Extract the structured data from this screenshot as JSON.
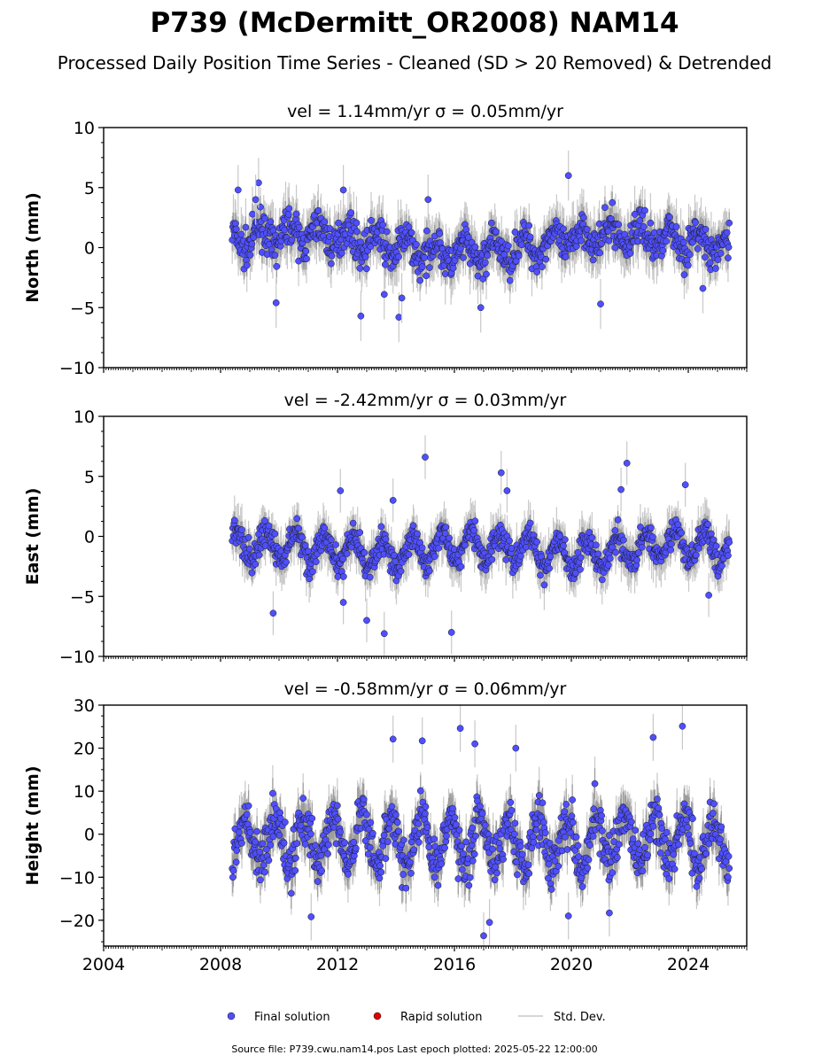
{
  "title": "P739 (McDermitt_OR2008) NAM14",
  "subtitle": "Processed Daily Position Time Series - Cleaned (SD > 20 Removed) & Detrended",
  "source_note": "Source file: P739.cwu.nam14.pos  Last epoch plotted: 2025-05-22 12:00:00",
  "legend": {
    "final": "Final solution",
    "rapid": "Rapid solution",
    "sd": "Std. Dev."
  },
  "colors": {
    "final": "#4f4fff",
    "rapid": "#e00000",
    "sd": "#c8c8c8",
    "band": "#777777"
  },
  "chart_data": [
    {
      "type": "scatter",
      "panel": "north",
      "title": "vel = 1.14mm/yr   σ = 0.05mm/yr",
      "ylabel": "North (mm)",
      "xlabel": "",
      "xlim": [
        2004,
        2026
      ],
      "ylim": [
        -10,
        10
      ],
      "yticks": [
        -10,
        -5,
        0,
        5,
        10
      ],
      "xticks": [
        2004,
        2008,
        2012,
        2016,
        2020,
        2024
      ],
      "data_range": [
        2008.4,
        2025.4
      ],
      "series_description": "Dense daily positions, mostly within about -3 to 4 mm with annual oscillation; outliers up to 6 and down to -6",
      "outliers": [
        [
          2008.6,
          4.8
        ],
        [
          2009.3,
          5.4
        ],
        [
          2009.2,
          4.0
        ],
        [
          2012.2,
          4.8
        ],
        [
          2015.1,
          4.0
        ],
        [
          2019.9,
          6.0
        ],
        [
          2012.8,
          -5.7
        ],
        [
          2014.1,
          -5.8
        ],
        [
          2016.9,
          -5.0
        ],
        [
          2009.9,
          -4.6
        ],
        [
          2021.0,
          -4.7
        ],
        [
          2024.5,
          -3.4
        ],
        [
          2013.6,
          -3.9
        ],
        [
          2014.2,
          -4.2
        ]
      ]
    },
    {
      "type": "scatter",
      "panel": "east",
      "title": "vel = -2.42mm/yr   σ = 0.03mm/yr",
      "ylabel": "East (mm)",
      "xlabel": "",
      "xlim": [
        2004,
        2026
      ],
      "ylim": [
        -10,
        10
      ],
      "yticks": [
        -10,
        -5,
        0,
        5,
        10
      ],
      "xticks": [
        2004,
        2008,
        2012,
        2016,
        2020,
        2024
      ],
      "data_range": [
        2008.4,
        2025.4
      ],
      "series_description": "Dense daily positions, mostly within about -4 to 2 mm with annual oscillation; outliers up to 6.6 and down to -8",
      "outliers": [
        [
          2015.0,
          6.6
        ],
        [
          2017.6,
          5.3
        ],
        [
          2021.9,
          6.1
        ],
        [
          2023.9,
          4.3
        ],
        [
          2017.8,
          3.8
        ],
        [
          2012.1,
          3.8
        ],
        [
          2013.6,
          -8.1
        ],
        [
          2015.9,
          -8.0
        ],
        [
          2013.0,
          -7.0
        ],
        [
          2009.8,
          -6.4
        ],
        [
          2012.2,
          -5.5
        ],
        [
          2024.7,
          -4.9
        ],
        [
          2021.7,
          3.9
        ],
        [
          2013.9,
          3.0
        ]
      ]
    },
    {
      "type": "scatter",
      "panel": "height",
      "title": "vel = -0.58mm/yr   σ = 0.06mm/yr",
      "ylabel": "Height (mm)",
      "xlabel": "",
      "xlim": [
        2004,
        2026
      ],
      "ylim": [
        -26,
        30
      ],
      "yticks": [
        -20,
        -10,
        0,
        10,
        20,
        30
      ],
      "xticks": [
        2004,
        2008,
        2012,
        2016,
        2020,
        2024
      ],
      "xtick_labels": [
        "2004",
        "2008",
        "2012",
        "2016",
        "2020",
        "2024"
      ],
      "data_range": [
        2008.4,
        2025.4
      ],
      "series_description": "Dense daily positions, mostly within about -15 to 12 mm with annual oscillation; outliers up to 25 and down to -24",
      "outliers": [
        [
          2016.2,
          24.6
        ],
        [
          2023.8,
          25.1
        ],
        [
          2014.9,
          21.7
        ],
        [
          2013.9,
          22.1
        ],
        [
          2022.8,
          22.5
        ],
        [
          2017.0,
          -23.6
        ],
        [
          2019.9,
          -19.0
        ],
        [
          2011.1,
          -19.2
        ],
        [
          2021.3,
          -18.3
        ],
        [
          2017.2,
          -20.5
        ],
        [
          2016.7,
          21.0
        ],
        [
          2018.1,
          20.0
        ]
      ]
    }
  ]
}
